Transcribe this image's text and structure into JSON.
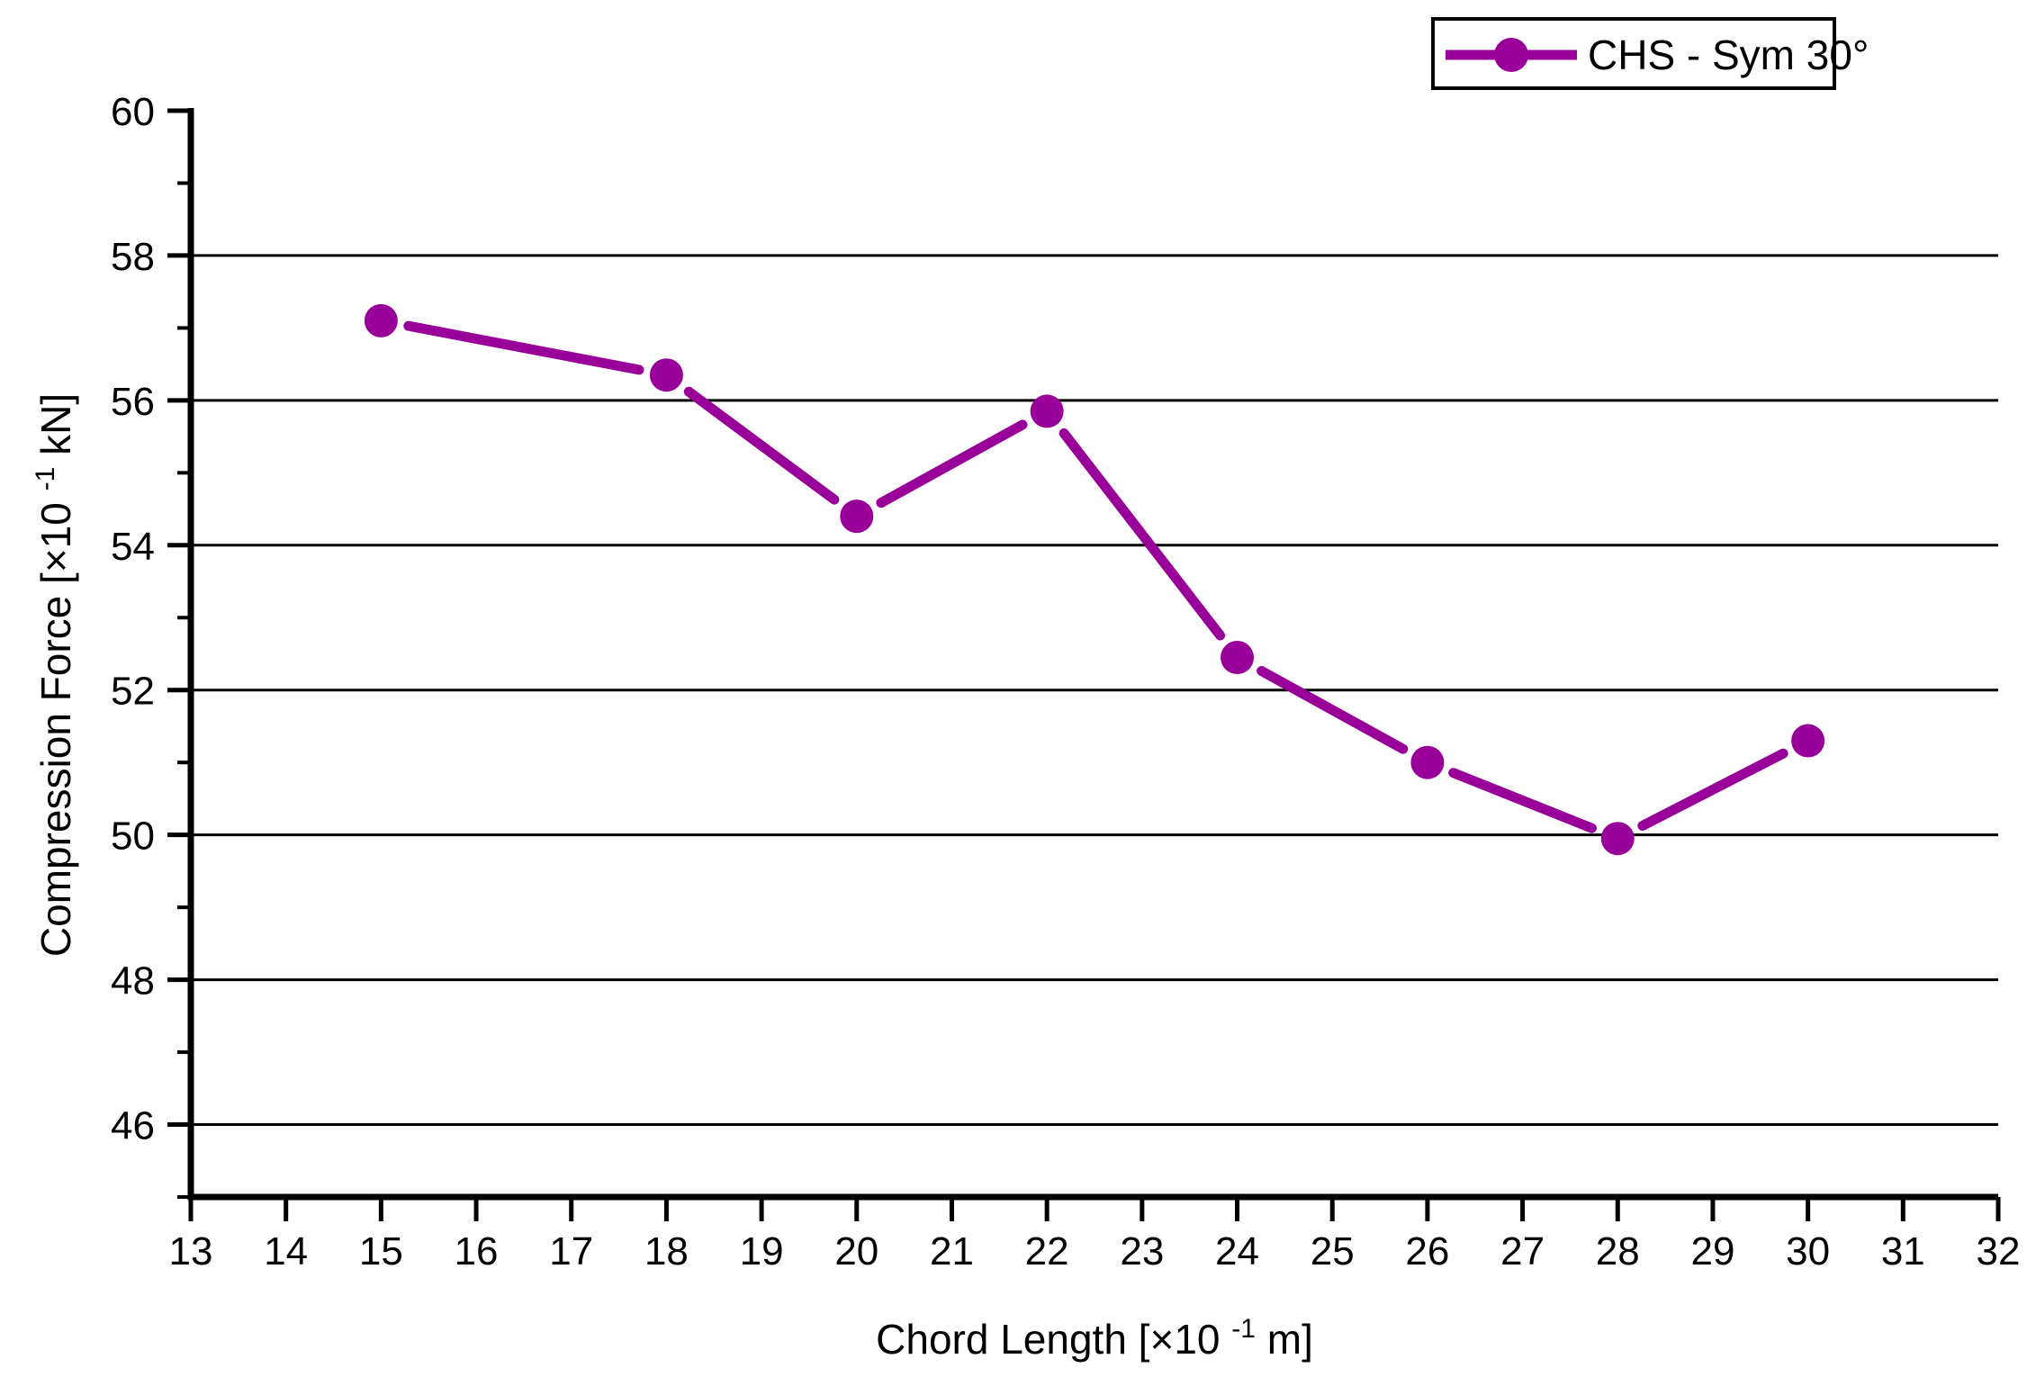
{
  "chart_data": {
    "type": "line",
    "title": "",
    "xlabel": "Chord Length [×10⁻¹ m]",
    "ylabel": "Compression Force [×10⁻¹ kN]",
    "xlabel_parts": {
      "prefix": "Chord Length [×10",
      "sup": "-1",
      "suffix": " m]"
    },
    "ylabel_parts": {
      "prefix": "Compression Force [×10",
      "sup": "-1",
      "suffix": " kN]"
    },
    "xlim": [
      13,
      32
    ],
    "ylim": [
      45,
      60
    ],
    "x_tick_labels": [
      13,
      14,
      15,
      16,
      17,
      18,
      19,
      20,
      21,
      22,
      23,
      24,
      25,
      26,
      27,
      28,
      29,
      30,
      31,
      32
    ],
    "y_major_tick_labels": [
      46,
      48,
      50,
      52,
      54,
      56,
      58,
      60
    ],
    "y_minor_ticks": [
      45,
      47,
      49,
      51,
      53,
      55,
      57,
      59
    ],
    "gridlines_y": [
      46,
      48,
      50,
      52,
      54,
      56,
      58
    ],
    "grid": "horizontal-major",
    "axis_color": "#000000",
    "background_color": "#ffffff",
    "legend": {
      "position": "top-right",
      "border": true,
      "entries": [
        {
          "label": "CHS - Sym 30°",
          "color": "#990099",
          "marker": "circle"
        }
      ]
    },
    "series": [
      {
        "name": "CHS - Sym 30°",
        "color": "#990099",
        "marker": "circle",
        "points": [
          {
            "x": 15,
            "y": 57.1
          },
          {
            "x": 18,
            "y": 56.35
          },
          {
            "x": 20,
            "y": 54.4
          },
          {
            "x": 22,
            "y": 55.85
          },
          {
            "x": 24,
            "y": 52.45
          },
          {
            "x": 26,
            "y": 51.0
          },
          {
            "x": 28,
            "y": 49.95
          },
          {
            "x": 30,
            "y": 51.3
          }
        ]
      }
    ]
  }
}
